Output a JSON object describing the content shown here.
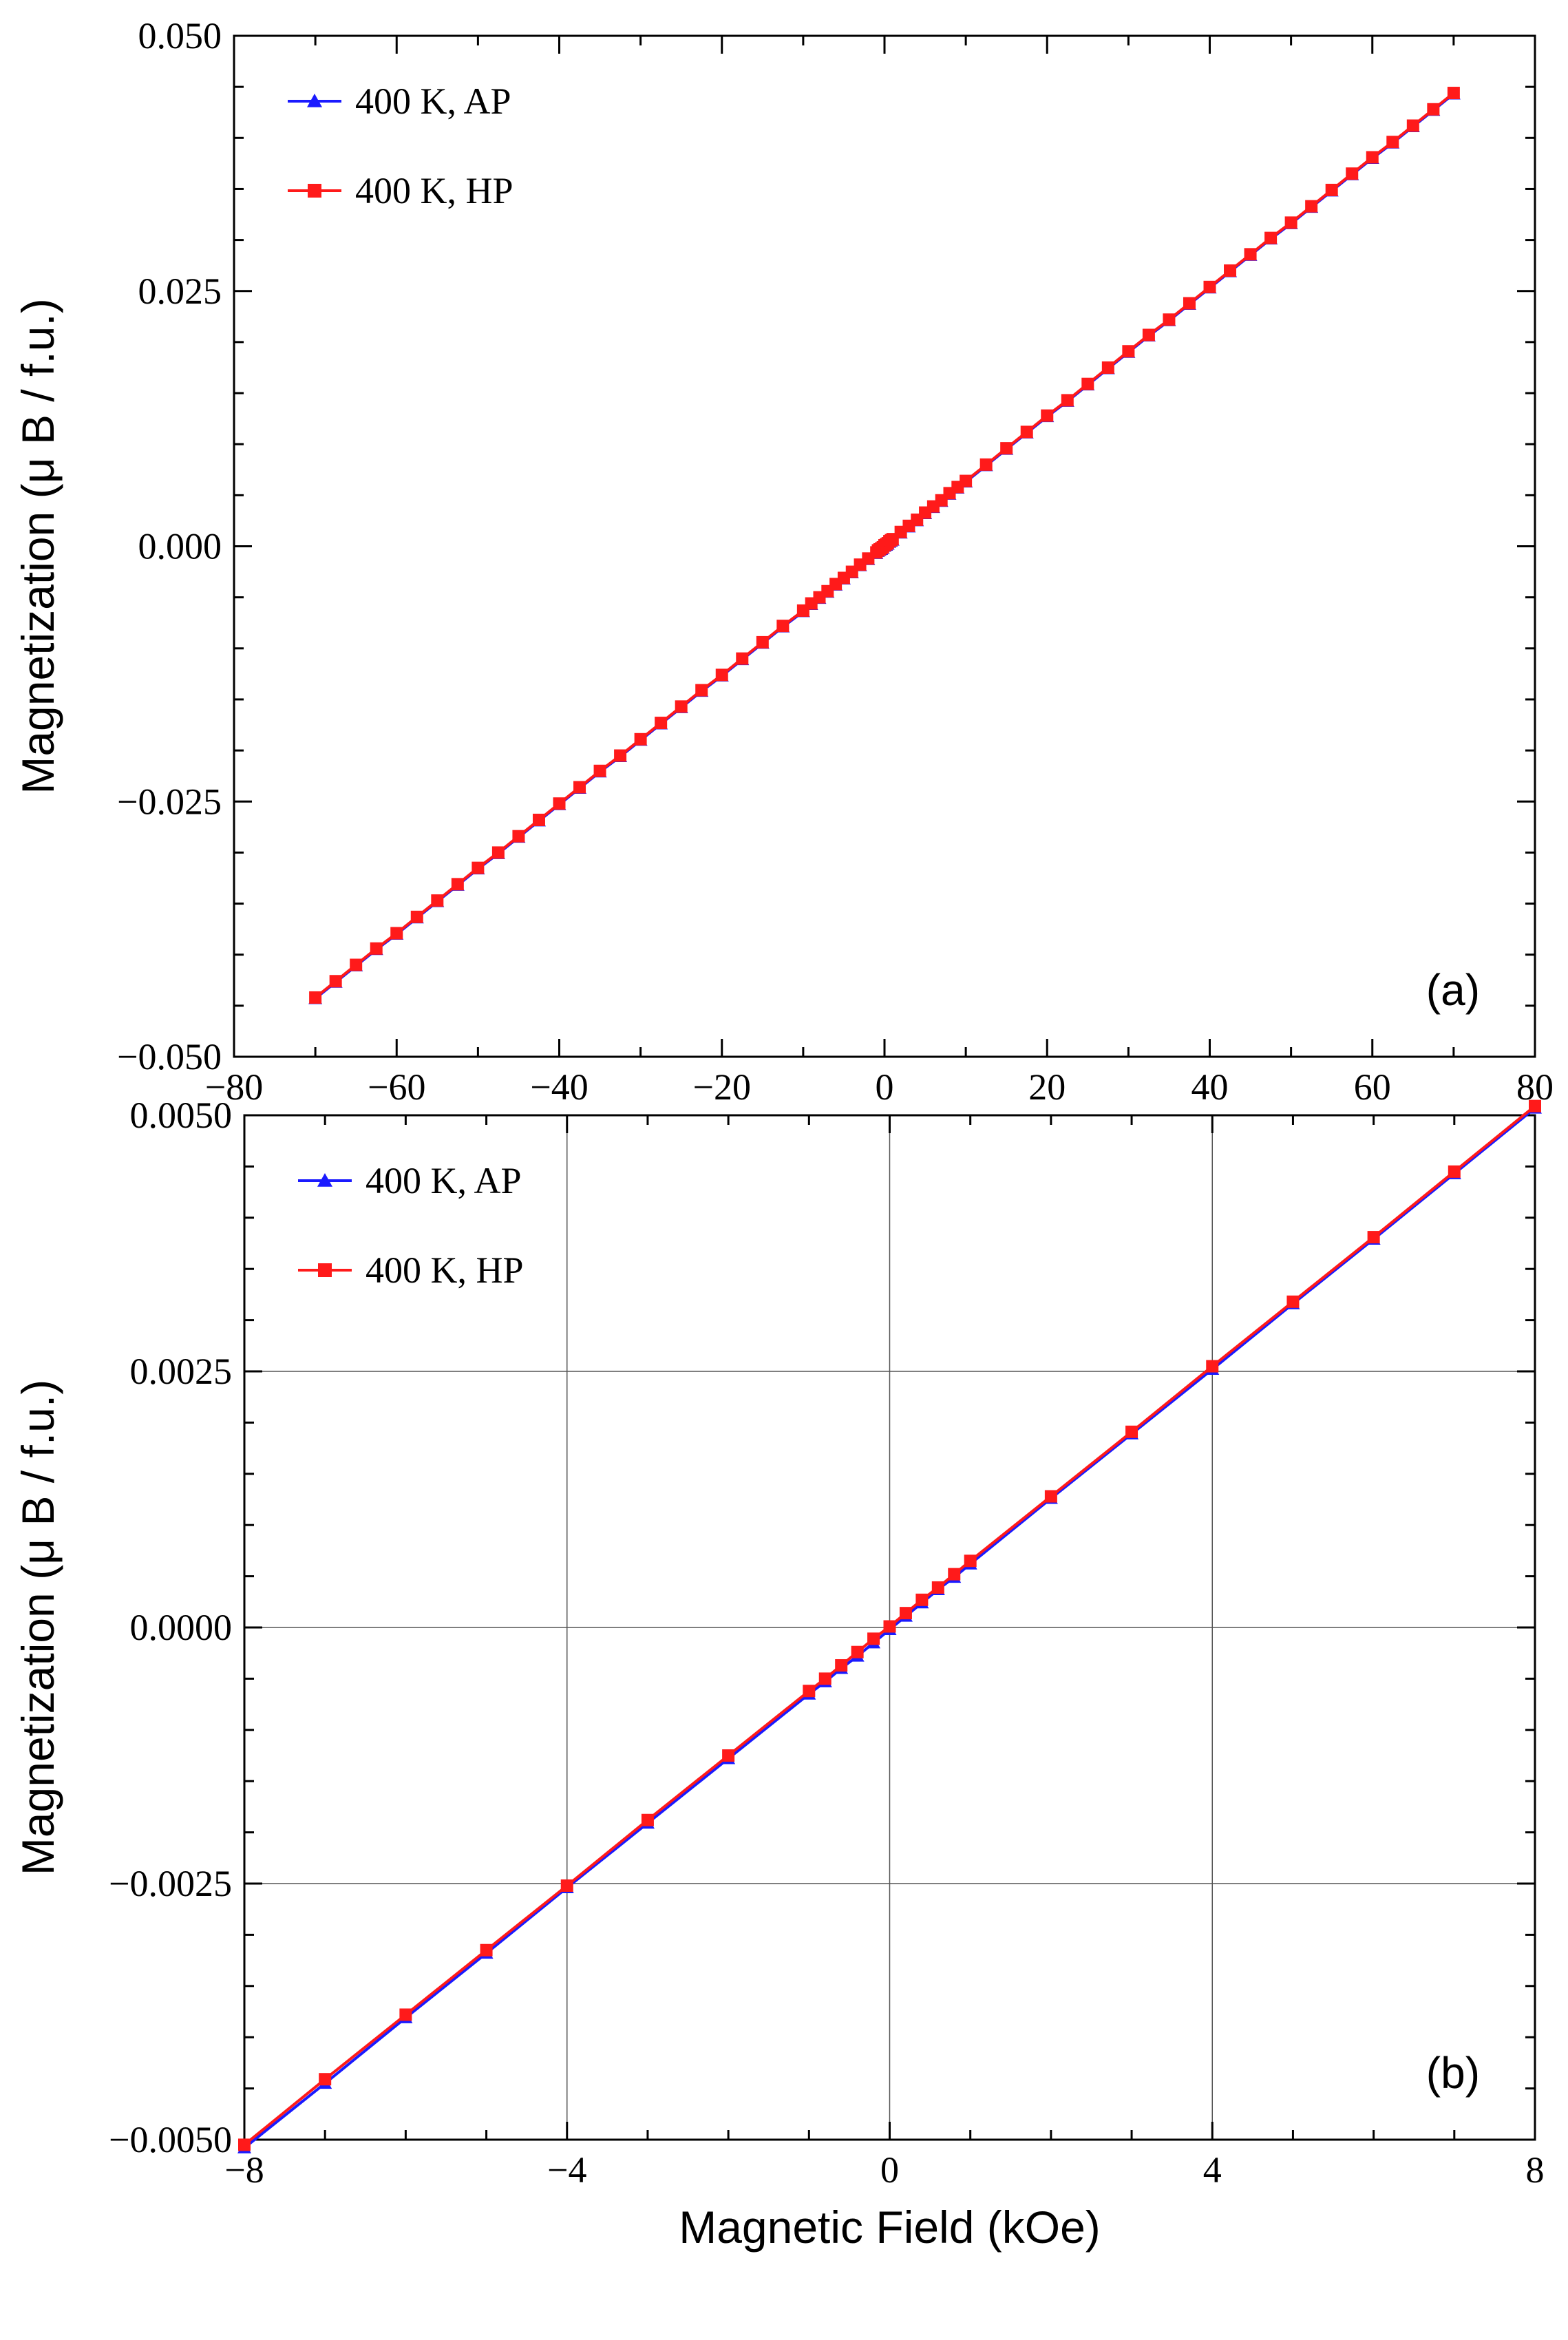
{
  "chart_data": [
    {
      "type": "line",
      "panel_label": "(a)",
      "xlabel": "",
      "ylabel": "Magnetization  (μ B / f.u.)",
      "xlim": [
        -80,
        80
      ],
      "ylim": [
        -0.05,
        0.05
      ],
      "x_ticks": [
        -80,
        -60,
        -40,
        -20,
        0,
        20,
        40,
        60,
        80
      ],
      "x_tick_labels": [
        "−80",
        "−60",
        "−40",
        "−20",
        "0",
        "20",
        "40",
        "60",
        "80"
      ],
      "y_ticks": [
        -0.05,
        -0.025,
        0,
        0.025,
        0.05
      ],
      "y_tick_labels": [
        "−0.050",
        "−0.025",
        "0.000",
        "0.025",
        "0.050"
      ],
      "grid": false,
      "legend_position": "top-left",
      "series": [
        {
          "name": "400 K, AP",
          "color": "#1a1aff",
          "marker": "triangle",
          "x": [
            -70,
            -67.5,
            -65,
            -62.5,
            -60,
            -57.5,
            -55,
            -52.5,
            -50,
            -47.5,
            -45,
            -42.5,
            -40,
            -37.5,
            -35,
            -32.5,
            -30,
            -27.5,
            -25,
            -22.5,
            -20,
            -17.5,
            -15,
            -12.5,
            -10,
            -9,
            -8,
            -7,
            -6,
            -5,
            -4,
            -3,
            -2,
            -1,
            -0.8,
            -0.6,
            -0.4,
            -0.2,
            0,
            0.2,
            0.4,
            0.6,
            0.8,
            1,
            2,
            3,
            4,
            5,
            6,
            7,
            8,
            9,
            10,
            12.5,
            15,
            17.5,
            20,
            22.5,
            25,
            27.5,
            30,
            32.5,
            35,
            37.5,
            40,
            42.5,
            45,
            47.5,
            50,
            52.5,
            55,
            57.5,
            60,
            62.5,
            65,
            67.5,
            70
          ],
          "y": [
            -0.0443,
            -0.0427,
            -0.0411,
            -0.0395,
            -0.038,
            -0.0364,
            -0.0348,
            -0.0332,
            -0.0316,
            -0.0301,
            -0.0285,
            -0.0269,
            -0.0253,
            -0.0237,
            -0.0221,
            -0.0206,
            -0.019,
            -0.0174,
            -0.0158,
            -0.0142,
            -0.0127,
            -0.0111,
            -0.0095,
            -0.0079,
            -0.0064,
            -0.0057,
            -0.0051,
            -0.0045,
            -0.0038,
            -0.0032,
            -0.0026,
            -0.0019,
            -0.0013,
            -0.0007,
            -0.0005,
            -0.0004,
            -0.0003,
            -0.0002,
            0.0,
            0.0001,
            0.0002,
            0.0004,
            0.0005,
            0.0006,
            0.0013,
            0.0019,
            0.0025,
            0.0032,
            0.0038,
            0.0044,
            0.0051,
            0.0057,
            0.0063,
            0.0079,
            0.0095,
            0.0111,
            0.0127,
            0.0142,
            0.0158,
            0.0174,
            0.019,
            0.0206,
            0.0221,
            0.0237,
            0.0253,
            0.0269,
            0.0285,
            0.0301,
            0.0316,
            0.0332,
            0.0348,
            0.0364,
            0.038,
            0.0395,
            0.0411,
            0.0427,
            0.0443
          ]
        },
        {
          "name": "400 K, HP",
          "color": "#ff1a1a",
          "marker": "square",
          "x": [
            -70,
            -67.5,
            -65,
            -62.5,
            -60,
            -57.5,
            -55,
            -52.5,
            -50,
            -47.5,
            -45,
            -42.5,
            -40,
            -37.5,
            -35,
            -32.5,
            -30,
            -27.5,
            -25,
            -22.5,
            -20,
            -17.5,
            -15,
            -12.5,
            -10,
            -9,
            -8,
            -7,
            -6,
            -5,
            -4,
            -3,
            -2,
            -1,
            -0.8,
            -0.6,
            -0.4,
            -0.2,
            0,
            0.2,
            0.4,
            0.6,
            0.8,
            1,
            2,
            3,
            4,
            5,
            6,
            7,
            8,
            9,
            10,
            12.5,
            15,
            17.5,
            20,
            22.5,
            25,
            27.5,
            30,
            32.5,
            35,
            37.5,
            40,
            42.5,
            45,
            47.5,
            50,
            52.5,
            55,
            57.5,
            60,
            62.5,
            65,
            67.5,
            70
          ],
          "y": [
            -0.0442,
            -0.0426,
            -0.041,
            -0.0394,
            -0.0379,
            -0.0363,
            -0.0347,
            -0.0331,
            -0.0315,
            -0.03,
            -0.0284,
            -0.0268,
            -0.0252,
            -0.0236,
            -0.022,
            -0.0205,
            -0.0189,
            -0.0173,
            -0.0157,
            -0.0141,
            -0.0126,
            -0.011,
            -0.0094,
            -0.0078,
            -0.0063,
            -0.0056,
            -0.005,
            -0.0044,
            -0.0037,
            -0.0031,
            -0.0025,
            -0.0018,
            -0.0012,
            -0.0006,
            -0.0004,
            -0.0003,
            -0.0002,
            -0.0001,
            0.0001,
            0.0002,
            0.0003,
            0.0005,
            0.0006,
            0.0007,
            0.0014,
            0.002,
            0.0026,
            0.0033,
            0.0039,
            0.0045,
            0.0052,
            0.0058,
            0.0064,
            0.008,
            0.0096,
            0.0112,
            0.0128,
            0.0143,
            0.0159,
            0.0175,
            0.0191,
            0.0207,
            0.0222,
            0.0238,
            0.0254,
            0.027,
            0.0286,
            0.0302,
            0.0317,
            0.0333,
            0.0349,
            0.0365,
            0.0381,
            0.0396,
            0.0412,
            0.0428,
            0.0444
          ]
        }
      ]
    },
    {
      "type": "line",
      "panel_label": "(b)",
      "xlabel": "Magnetic Field (kOe)",
      "ylabel": "Magnetization  (μ B / f.u.)",
      "xlim": [
        -8,
        8
      ],
      "ylim": [
        -0.005,
        0.005
      ],
      "x_ticks": [
        -8,
        -4,
        0,
        4,
        8
      ],
      "x_tick_labels": [
        "−8",
        "−4",
        "0",
        "4",
        "8"
      ],
      "y_ticks": [
        -0.005,
        -0.0025,
        0,
        0.0025,
        0.005
      ],
      "y_tick_labels": [
        "−0.0050",
        "−0.0025",
        "0.0000",
        "0.0025",
        "0.0050"
      ],
      "grid": true,
      "legend_position": "top-left",
      "series": [
        {
          "name": "400 K, AP",
          "color": "#1a1aff",
          "marker": "triangle",
          "x": [
            -8,
            -7,
            -6,
            -5,
            -4,
            -3,
            -2,
            -1,
            -0.8,
            -0.6,
            -0.4,
            -0.2,
            0,
            0.2,
            0.4,
            0.6,
            0.8,
            1,
            2,
            3,
            4,
            5,
            6,
            7,
            8
          ],
          "y": [
            -0.00508,
            -0.00445,
            -0.00381,
            -0.00318,
            -0.00254,
            -0.00191,
            -0.00128,
            -0.00065,
            -0.00053,
            -0.0004,
            -0.00028,
            -0.00015,
            -2e-05,
            0.00011,
            0.00024,
            0.00037,
            0.00049,
            0.00062,
            0.00126,
            0.00189,
            0.00252,
            0.00316,
            0.00379,
            0.00443,
            0.00507
          ]
        },
        {
          "name": "400 K, HP",
          "color": "#ff1a1a",
          "marker": "square",
          "x": [
            -8,
            -7,
            -6,
            -5,
            -4,
            -3,
            -2,
            -1,
            -0.8,
            -0.6,
            -0.4,
            -0.2,
            0,
            0.2,
            0.4,
            0.6,
            0.8,
            1,
            2,
            3,
            4,
            5,
            6,
            7,
            8
          ],
          "y": [
            -0.00505,
            -0.00441,
            -0.00378,
            -0.00315,
            -0.00252,
            -0.00188,
            -0.00125,
            -0.00062,
            -0.0005,
            -0.00037,
            -0.00024,
            -0.00011,
            1e-05,
            0.00014,
            0.00027,
            0.00039,
            0.00052,
            0.00065,
            0.00128,
            0.00191,
            0.00255,
            0.00318,
            0.00381,
            0.00445,
            0.00509
          ]
        }
      ]
    }
  ]
}
